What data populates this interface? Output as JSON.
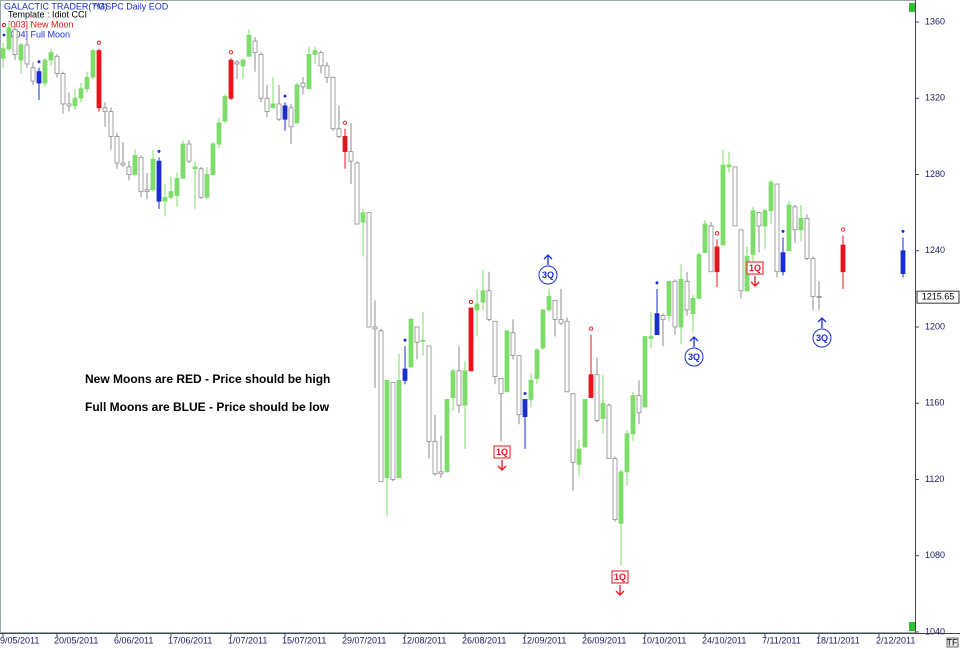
{
  "chart_data": {
    "type": "candlestick",
    "header": {
      "app": "GALACTIC TRADER(TM)",
      "symbol": "^GSPC Daily EOD",
      "template": "Template : Idiot CCI"
    },
    "new_moon_label": "[003] New Moon",
    "full_moon_label": "[004] Full Moon",
    "notes": [
      "New Moons are RED - Price should be high",
      "Full Moons are BLUE - Price should be low"
    ],
    "annotations": [
      {
        "text": "1Q",
        "color": "#e8141b"
      },
      {
        "text": "3Q",
        "color": "#1a2fd0"
      },
      {
        "text": "1Q",
        "color": "#e8141b"
      },
      {
        "text": "3Q",
        "color": "#1a2fd0"
      },
      {
        "text": "1Q",
        "color": "#e8141b"
      },
      {
        "text": "3Q",
        "color": "#1a2fd0"
      }
    ],
    "up_color": "#7ddc6a",
    "down_color": "#8c8c8c",
    "new_moon_color": "#e8141b",
    "full_moon_color": "#1a2fd0",
    "new_moon": [
      16,
      38,
      57,
      78,
      98,
      119,
      140
    ],
    "full_moon": [
      6,
      26,
      47,
      67,
      87,
      109,
      130,
      150
    ],
    "ylim": [
      1040,
      1360
    ],
    "yticks": [
      1040,
      1080,
      1120,
      1160,
      1200,
      1240,
      1280,
      1320,
      1360
    ],
    "categories": [
      "9/05/2011",
      null,
      null,
      null,
      null,
      null,
      null,
      null,
      null,
      "20/05/2011",
      null,
      null,
      null,
      null,
      null,
      null,
      null,
      null,
      null,
      "6/06/2011",
      null,
      null,
      null,
      null,
      null,
      null,
      null,
      null,
      "17/06/2011",
      null,
      null,
      null,
      null,
      null,
      null,
      null,
      null,
      null,
      "1/07/2011",
      null,
      null,
      null,
      null,
      null,
      null,
      null,
      null,
      "15/07/2011",
      null,
      null,
      null,
      null,
      null,
      null,
      null,
      null,
      null,
      "29/07/2011",
      null,
      null,
      null,
      null,
      null,
      null,
      null,
      null,
      null,
      "12/08/2011",
      null,
      null,
      null,
      null,
      null,
      null,
      null,
      null,
      null,
      "26/08/2011",
      null,
      null,
      null,
      null,
      null,
      null,
      null,
      null,
      null,
      "12/09/2011",
      null,
      null,
      null,
      null,
      null,
      null,
      null,
      null,
      null,
      "26/09/2011",
      null,
      null,
      null,
      null,
      null,
      null,
      null,
      null,
      null,
      "10/10/2011",
      null,
      null,
      null,
      null,
      null,
      null,
      null,
      null,
      null,
      "24/10/2011",
      null,
      null,
      null,
      null,
      null,
      null,
      null,
      null,
      null,
      "7/11/2011",
      null,
      null,
      null,
      null,
      null,
      null,
      null,
      null,
      "18/11/2011",
      null,
      null,
      null,
      null,
      null,
      null,
      null,
      null,
      null,
      "2/12/2011",
      null,
      null,
      null,
      null
    ],
    "ohlc": [
      [
        1341,
        1349,
        1336,
        1346
      ],
      [
        1346,
        1360,
        1345,
        1357
      ],
      [
        1356,
        1359,
        1340,
        1343
      ],
      [
        1340,
        1349,
        1333,
        1348
      ],
      [
        1348,
        1351,
        1336,
        1338
      ],
      [
        1336,
        1339,
        1327,
        1329
      ],
      [
        1334,
        1336,
        1319,
        1328
      ],
      [
        1328,
        1341,
        1326,
        1340
      ],
      [
        1340,
        1346,
        1337,
        1344
      ],
      [
        1342,
        1343,
        1331,
        1333
      ],
      [
        1333,
        1334,
        1312,
        1317
      ],
      [
        1317,
        1323,
        1313,
        1316
      ],
      [
        1316,
        1325,
        1314,
        1320
      ],
      [
        1320,
        1328,
        1318,
        1325
      ],
      [
        1325,
        1334,
        1323,
        1331
      ],
      [
        1331,
        1346,
        1330,
        1345
      ],
      [
        1345,
        1346,
        1313,
        1315
      ],
      [
        1315,
        1318,
        1305,
        1313
      ],
      [
        1313,
        1315,
        1293,
        1300
      ],
      [
        1300,
        1302,
        1283,
        1286
      ],
      [
        1286,
        1297,
        1284,
        1285
      ],
      [
        1284,
        1287,
        1277,
        1280
      ],
      [
        1280,
        1293,
        1279,
        1290
      ],
      [
        1289,
        1290,
        1268,
        1271
      ],
      [
        1272,
        1281,
        1267,
        1271
      ],
      [
        1272,
        1293,
        1271,
        1288
      ],
      [
        1287,
        1289,
        1262,
        1266
      ],
      [
        1266,
        1275,
        1258,
        1268
      ],
      [
        1268,
        1279,
        1267,
        1271
      ],
      [
        1269,
        1281,
        1263,
        1278
      ],
      [
        1278,
        1298,
        1278,
        1296
      ],
      [
        1296,
        1298,
        1286,
        1287
      ],
      [
        1283,
        1287,
        1262,
        1284
      ],
      [
        1283,
        1284,
        1267,
        1268
      ],
      [
        1268,
        1284,
        1267,
        1280
      ],
      [
        1280,
        1297,
        1280,
        1296
      ],
      [
        1296,
        1310,
        1294,
        1307
      ],
      [
        1308,
        1322,
        1307,
        1321
      ],
      [
        1320,
        1341,
        1319,
        1340
      ],
      [
        1339,
        1340,
        1330,
        1338
      ],
      [
        1337,
        1341,
        1330,
        1340
      ],
      [
        1342,
        1356,
        1342,
        1353
      ],
      [
        1350,
        1352,
        1334,
        1344
      ],
      [
        1343,
        1344,
        1318,
        1320
      ],
      [
        1320,
        1327,
        1310,
        1313
      ],
      [
        1315,
        1331,
        1315,
        1317
      ],
      [
        1317,
        1327,
        1308,
        1309
      ],
      [
        1309,
        1318,
        1303,
        1316
      ],
      [
        1315,
        1317,
        1296,
        1305
      ],
      [
        1307,
        1328,
        1307,
        1327
      ],
      [
        1328,
        1331,
        1322,
        1326
      ],
      [
        1325,
        1347,
        1325,
        1343
      ],
      [
        1343,
        1347,
        1338,
        1345
      ],
      [
        1344,
        1345,
        1333,
        1337
      ],
      [
        1337,
        1339,
        1328,
        1331
      ],
      [
        1331,
        1331,
        1303,
        1304
      ],
      [
        1304,
        1316,
        1299,
        1300
      ],
      [
        1300,
        1304,
        1283,
        1292
      ],
      [
        1292,
        1307,
        1275,
        1287
      ],
      [
        1286,
        1287,
        1254,
        1254
      ],
      [
        1255,
        1262,
        1237,
        1260
      ],
      [
        1260,
        1260,
        1200,
        1200
      ],
      [
        1200,
        1214,
        1168,
        1199
      ],
      [
        1198,
        1199,
        1119,
        1119
      ],
      [
        1121,
        1172,
        1101,
        1172
      ],
      [
        1171,
        1171,
        1119,
        1120
      ],
      [
        1121,
        1186,
        1121,
        1172
      ],
      [
        1172,
        1190,
        1170,
        1178
      ],
      [
        1179,
        1205,
        1179,
        1204
      ],
      [
        1200,
        1200,
        1183,
        1192
      ],
      [
        1193,
        1208,
        1185,
        1193
      ],
      [
        1190,
        1190,
        1131,
        1140
      ],
      [
        1140,
        1154,
        1122,
        1123
      ],
      [
        1124,
        1143,
        1121,
        1123
      ],
      [
        1124,
        1162,
        1124,
        1162
      ],
      [
        1163,
        1178,
        1156,
        1177
      ],
      [
        1177,
        1190,
        1155,
        1159
      ],
      [
        1159,
        1182,
        1136,
        1177
      ],
      [
        1177,
        1210,
        1177,
        1210
      ],
      [
        1209,
        1220,
        1195,
        1212
      ],
      [
        1213,
        1230,
        1209,
        1219
      ],
      [
        1219,
        1229,
        1203,
        1204
      ],
      [
        1203,
        1203,
        1170,
        1174
      ],
      [
        1173,
        1173,
        1140,
        1165
      ],
      [
        1166,
        1198,
        1166,
        1198
      ],
      [
        1197,
        1204,
        1183,
        1185
      ],
      [
        1185,
        1185,
        1149,
        1154
      ],
      [
        1153,
        1162,
        1136,
        1162
      ],
      [
        1162,
        1176,
        1158,
        1172
      ],
      [
        1173,
        1189,
        1170,
        1188
      ],
      [
        1189,
        1209,
        1188,
        1209
      ],
      [
        1209,
        1220,
        1208,
        1216
      ],
      [
        1214,
        1214,
        1195,
        1204
      ],
      [
        1204,
        1220,
        1201,
        1202
      ],
      [
        1203,
        1205,
        1166,
        1166
      ],
      [
        1165,
        1165,
        1114,
        1129
      ],
      [
        1128,
        1141,
        1122,
        1136
      ],
      [
        1137,
        1162,
        1137,
        1162
      ],
      [
        1163,
        1196,
        1163,
        1175
      ],
      [
        1175,
        1184,
        1150,
        1151
      ],
      [
        1152,
        1175,
        1144,
        1160
      ],
      [
        1159,
        1160,
        1131,
        1131
      ],
      [
        1131,
        1132,
        1098,
        1099
      ],
      [
        1097,
        1125,
        1075,
        1124
      ],
      [
        1124,
        1146,
        1117,
        1144
      ],
      [
        1144,
        1166,
        1140,
        1164
      ],
      [
        1164,
        1172,
        1149,
        1155
      ],
      [
        1158,
        1195,
        1158,
        1195
      ],
      [
        1194,
        1208,
        1189,
        1195
      ],
      [
        1196,
        1220,
        1196,
        1207
      ],
      [
        1206,
        1207,
        1190,
        1204
      ],
      [
        1206,
        1224,
        1203,
        1224
      ],
      [
        1224,
        1225,
        1196,
        1200
      ],
      [
        1200,
        1233,
        1191,
        1225
      ],
      [
        1224,
        1229,
        1206,
        1209
      ],
      [
        1207,
        1217,
        1197,
        1215
      ],
      [
        1215,
        1239,
        1215,
        1238
      ],
      [
        1239,
        1256,
        1239,
        1254
      ],
      [
        1253,
        1255,
        1229,
        1229
      ],
      [
        1229,
        1246,
        1221,
        1242
      ],
      [
        1243,
        1293,
        1243,
        1285
      ],
      [
        1284,
        1292,
        1281,
        1285
      ],
      [
        1284,
        1284,
        1253,
        1253
      ],
      [
        1251,
        1251,
        1215,
        1219
      ],
      [
        1219,
        1242,
        1219,
        1237
      ],
      [
        1238,
        1263,
        1234,
        1261
      ],
      [
        1260,
        1260,
        1239,
        1253
      ],
      [
        1253,
        1262,
        1241,
        1261
      ],
      [
        1261,
        1277,
        1254,
        1276
      ],
      [
        1275,
        1275,
        1226,
        1229
      ],
      [
        1229,
        1247,
        1227,
        1239
      ],
      [
        1240,
        1266,
        1240,
        1264
      ],
      [
        1263,
        1264,
        1244,
        1251
      ],
      [
        1251,
        1264,
        1245,
        1257
      ],
      [
        1257,
        1259,
        1235,
        1236
      ],
      [
        1236,
        1237,
        1209,
        1216
      ],
      [
        1216,
        1224,
        1209,
        1215.65
      ],
      null,
      null,
      null,
      [
        1229,
        1248,
        1220,
        1243
      ],
      null,
      null,
      null,
      null,
      null,
      null,
      null,
      null,
      null,
      [
        1228,
        1247,
        1226,
        1240
      ]
    ]
  }
}
